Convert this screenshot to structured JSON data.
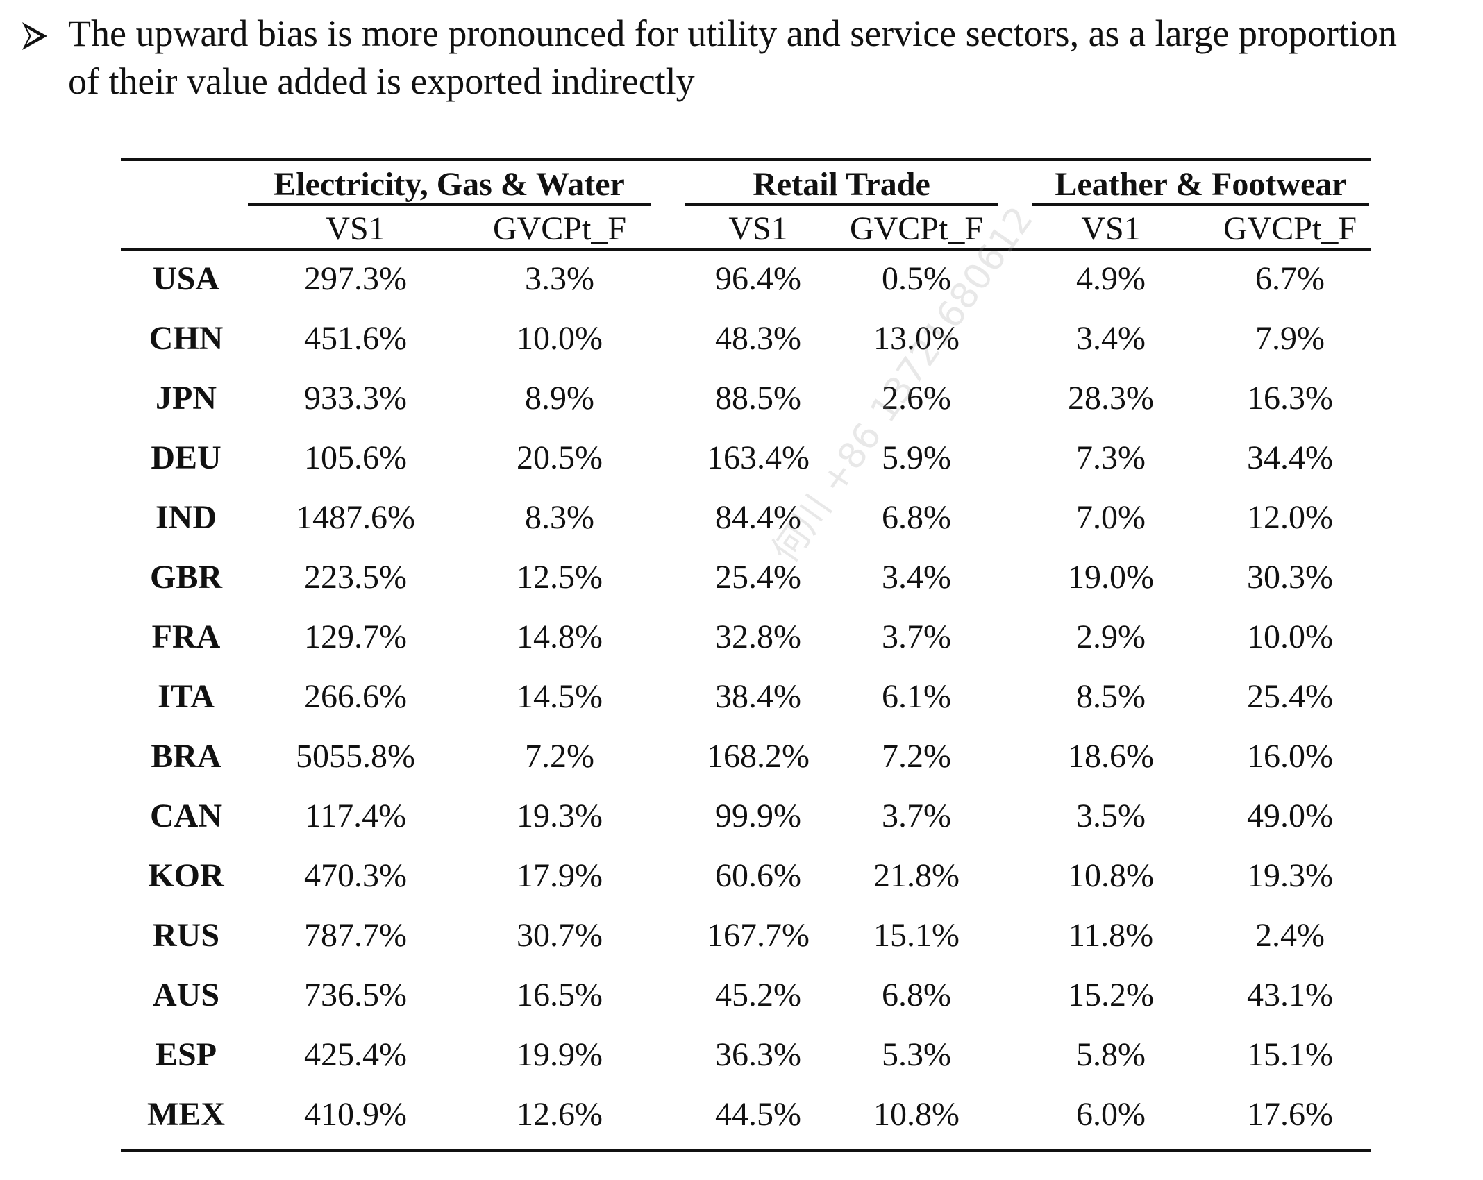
{
  "headline": "The upward bias is more pronounced for utility and service sectors, as a large proportion of their value added is exported indirectly",
  "table": {
    "groups": [
      "Electricity, Gas & Water",
      "Retail Trade",
      "Leather & Footwear"
    ],
    "subheaders": [
      "VS1",
      "GVCPt_F",
      "VS1",
      "GVCPt_F",
      "VS1",
      "GVCPt_F"
    ],
    "rows": [
      {
        "country": "USA",
        "values": [
          "297.3%",
          "3.3%",
          "96.4%",
          "0.5%",
          "4.9%",
          "6.7%"
        ]
      },
      {
        "country": "CHN",
        "values": [
          "451.6%",
          "10.0%",
          "48.3%",
          "13.0%",
          "3.4%",
          "7.9%"
        ]
      },
      {
        "country": "JPN",
        "values": [
          "933.3%",
          "8.9%",
          "88.5%",
          "2.6%",
          "28.3%",
          "16.3%"
        ]
      },
      {
        "country": "DEU",
        "values": [
          "105.6%",
          "20.5%",
          "163.4%",
          "5.9%",
          "7.3%",
          "34.4%"
        ]
      },
      {
        "country": "IND",
        "values": [
          "1487.6%",
          "8.3%",
          "84.4%",
          "6.8%",
          "7.0%",
          "12.0%"
        ]
      },
      {
        "country": "GBR",
        "values": [
          "223.5%",
          "12.5%",
          "25.4%",
          "3.4%",
          "19.0%",
          "30.3%"
        ]
      },
      {
        "country": "FRA",
        "values": [
          "129.7%",
          "14.8%",
          "32.8%",
          "3.7%",
          "2.9%",
          "10.0%"
        ]
      },
      {
        "country": "ITA",
        "values": [
          "266.6%",
          "14.5%",
          "38.4%",
          "6.1%",
          "8.5%",
          "25.4%"
        ]
      },
      {
        "country": "BRA",
        "values": [
          "5055.8%",
          "7.2%",
          "168.2%",
          "7.2%",
          "18.6%",
          "16.0%"
        ]
      },
      {
        "country": "CAN",
        "values": [
          "117.4%",
          "19.3%",
          "99.9%",
          "3.7%",
          "3.5%",
          "49.0%"
        ]
      },
      {
        "country": "KOR",
        "values": [
          "470.3%",
          "17.9%",
          "60.6%",
          "21.8%",
          "10.8%",
          "19.3%"
        ]
      },
      {
        "country": "RUS",
        "values": [
          "787.7%",
          "30.7%",
          "167.7%",
          "15.1%",
          "11.8%",
          "2.4%"
        ]
      },
      {
        "country": "AUS",
        "values": [
          "736.5%",
          "16.5%",
          "45.2%",
          "6.8%",
          "15.2%",
          "43.1%"
        ]
      },
      {
        "country": "ESP",
        "values": [
          "425.4%",
          "19.9%",
          "36.3%",
          "5.3%",
          "5.8%",
          "15.1%"
        ]
      },
      {
        "country": "MEX",
        "values": [
          "410.9%",
          "12.6%",
          "44.5%",
          "10.8%",
          "6.0%",
          "17.6%"
        ]
      }
    ]
  },
  "watermark": "何川 +86 13721680612"
}
